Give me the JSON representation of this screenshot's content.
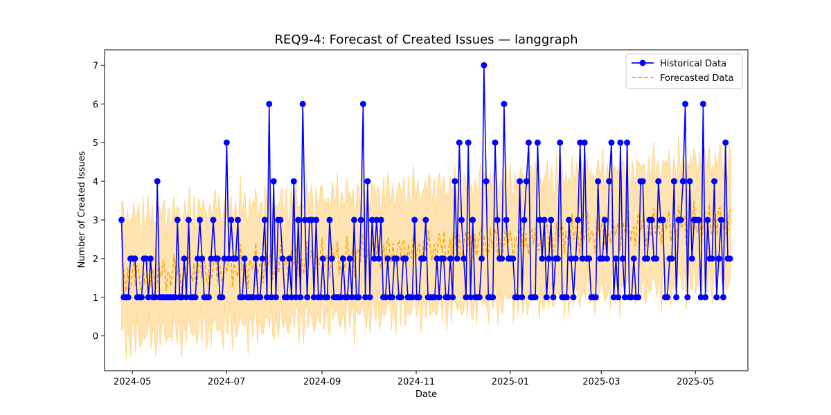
{
  "chart_data": {
    "type": "line",
    "title": "REQ9-4: Forecast of Created Issues — langgraph",
    "xlabel": "Date",
    "ylabel": "Number of Created Issues",
    "xlim": [
      "2024-04-13",
      "2025-06-04"
    ],
    "ylim": [
      -0.9,
      7.4
    ],
    "x_ticks": [
      "2024-05-01",
      "2024-07-01",
      "2024-09-01",
      "2024-11-01",
      "2025-01-01",
      "2025-03-01",
      "2025-05-01"
    ],
    "x_tick_labels": [
      "2024-05",
      "2024-07",
      "2024-09",
      "2024-11",
      "2025-01",
      "2025-03",
      "2025-05"
    ],
    "y_ticks": [
      0,
      1,
      2,
      3,
      4,
      5,
      6,
      7
    ],
    "legend": {
      "position": "top-right",
      "entries": [
        "Historical Data",
        "Forecasted Data"
      ]
    },
    "colors": {
      "historical": "#0000ff",
      "forecast": "#ffa500",
      "band": "#ffa500"
    },
    "series": [
      {
        "name": "Historical Data",
        "style": "line-markers",
        "start_date": "2024-04-24",
        "values": [
          3,
          1,
          1,
          1,
          2,
          2,
          2,
          1,
          1,
          1,
          2,
          2,
          1,
          2,
          1,
          1,
          4,
          1,
          1,
          1,
          1,
          1,
          1,
          1,
          1,
          3,
          1,
          1,
          2,
          1,
          3,
          1,
          1,
          1,
          2,
          3,
          2,
          1,
          1,
          1,
          2,
          3,
          2,
          2,
          1,
          1,
          2,
          5,
          2,
          3,
          2,
          2,
          3,
          1,
          1,
          2,
          1,
          1,
          1,
          1,
          2,
          1,
          1,
          2,
          3,
          1,
          6,
          1,
          4,
          1,
          3,
          3,
          2,
          1,
          1,
          2,
          1,
          4,
          1,
          3,
          1,
          6,
          3,
          1,
          3,
          3,
          1,
          3,
          1,
          1,
          2,
          1,
          1,
          3,
          2,
          1,
          1,
          1,
          1,
          2,
          1,
          1,
          2,
          1,
          3,
          1,
          1,
          3,
          6,
          1,
          4,
          1,
          3,
          2,
          3,
          2,
          3,
          1,
          1,
          2,
          1,
          1,
          2,
          2,
          1,
          1,
          2,
          2,
          1,
          1,
          1,
          3,
          1,
          1,
          2,
          2,
          3,
          1,
          1,
          1,
          1,
          2,
          1,
          2,
          2,
          1,
          1,
          2,
          1,
          4,
          2,
          5,
          3,
          2,
          1,
          5,
          1,
          3,
          1,
          1,
          1,
          2,
          7,
          4,
          1,
          1,
          1,
          5,
          3,
          2,
          2,
          6,
          3,
          2,
          2,
          2,
          1,
          1,
          4,
          1,
          3,
          4,
          5,
          1,
          1,
          1,
          5,
          3,
          2,
          3,
          1,
          2,
          3,
          1,
          2,
          2,
          5,
          1,
          1,
          1,
          3,
          2,
          1,
          2,
          3,
          5,
          2,
          5,
          2,
          2,
          1,
          1,
          1,
          4,
          2,
          2,
          3,
          2,
          4,
          5,
          1,
          2,
          1,
          5,
          2,
          1,
          5,
          1,
          1,
          2,
          1,
          1,
          4,
          4,
          2,
          2,
          3,
          3,
          2,
          2,
          4,
          3,
          3,
          1,
          1,
          2,
          2,
          4,
          1,
          3,
          3,
          4,
          6,
          1,
          4,
          2,
          3,
          3,
          3,
          1,
          6,
          1,
          3,
          2,
          2,
          4,
          1,
          2,
          3,
          1,
          5,
          2,
          2
        ]
      },
      {
        "name": "Forecasted Data",
        "style": "dashed",
        "start_date": "2024-04-24",
        "end_date": "2025-05-24",
        "baseline": [
          1.5,
          3.0
        ],
        "band_halfwidth": 1.55
      }
    ]
  }
}
